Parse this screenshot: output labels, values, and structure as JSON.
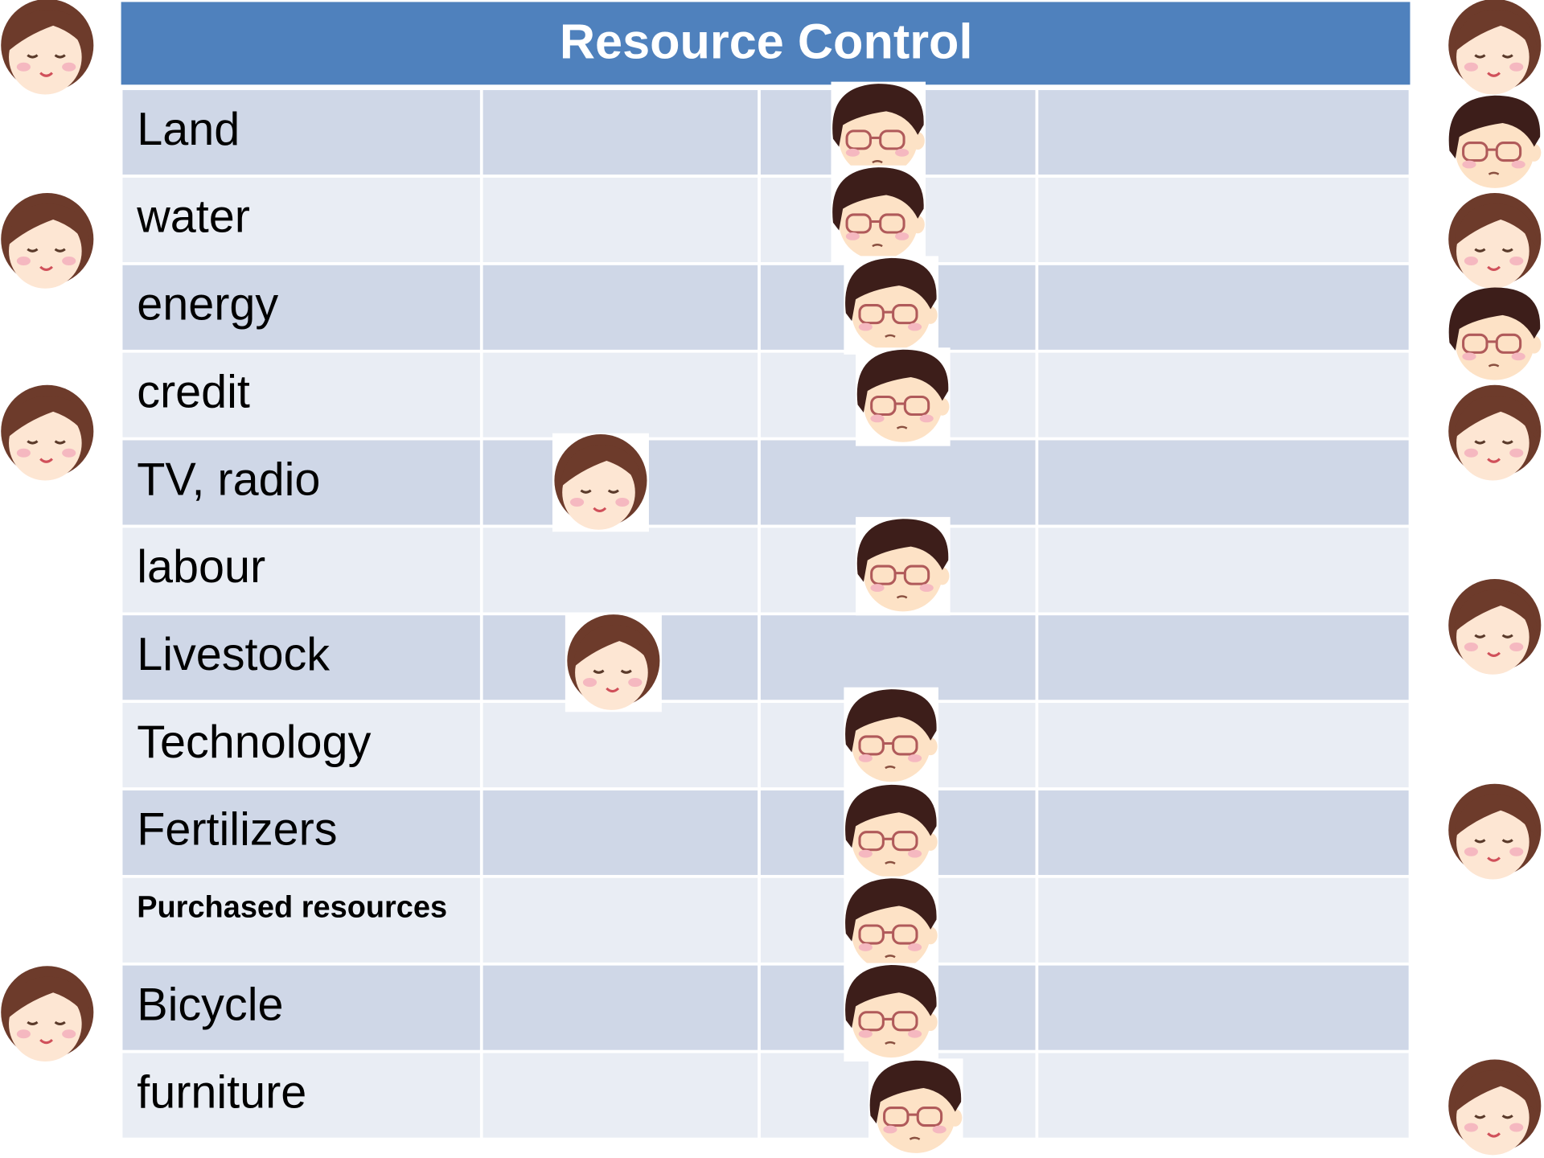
{
  "title": "Resource Control",
  "rows": [
    "Land",
    "water",
    "energy",
    "credit",
    "TV, radio",
    "labour",
    "Livestock",
    "Technology",
    "Fertilizers",
    "Purchased resources",
    "Bicycle",
    "furniture"
  ]
}
